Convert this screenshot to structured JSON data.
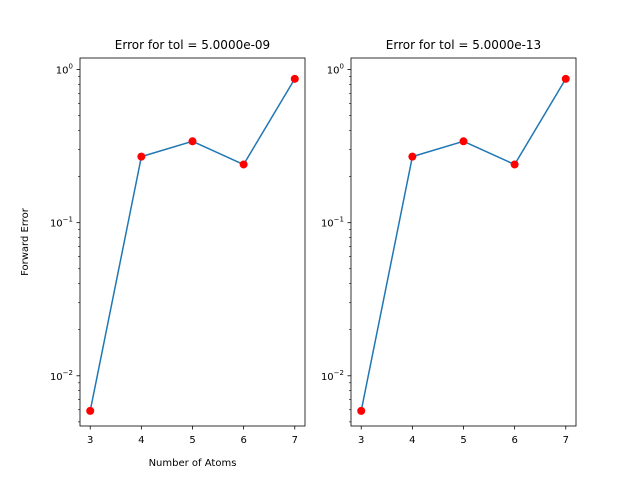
{
  "colors": {
    "line": "#1f77b4",
    "marker": "#ff0000",
    "axis": "#000000"
  },
  "chart_data": [
    {
      "type": "line",
      "title": "Error for tol = 5.0000e-09",
      "xlabel": "Number of Atoms",
      "ylabel": "Forward Error",
      "yscale": "log",
      "grid": false,
      "xlim": [
        2.8,
        7.2
      ],
      "ylim": [
        0.0047,
        1.19
      ],
      "x": [
        3,
        4,
        5,
        6,
        7
      ],
      "y": [
        0.0059,
        0.27,
        0.34,
        0.24,
        0.87
      ],
      "xticks": [
        "3",
        "4",
        "5",
        "6",
        "7"
      ],
      "yticks": [
        {
          "value": 0.01,
          "base": "10",
          "exp": "−2"
        },
        {
          "value": 0.1,
          "base": "10",
          "exp": "−1"
        },
        {
          "value": 1,
          "base": "10",
          "exp": "0"
        }
      ]
    },
    {
      "type": "line",
      "title": "Error for tol = 5.0000e-13",
      "xlabel": "",
      "ylabel": "",
      "yscale": "log",
      "grid": false,
      "xlim": [
        2.8,
        7.2
      ],
      "ylim": [
        0.0047,
        1.19
      ],
      "x": [
        3,
        4,
        5,
        6,
        7
      ],
      "y": [
        0.0059,
        0.27,
        0.34,
        0.24,
        0.87
      ],
      "xticks": [
        "3",
        "4",
        "5",
        "6",
        "7"
      ],
      "yticks": [
        {
          "value": 0.01,
          "base": "10",
          "exp": "−2"
        },
        {
          "value": 0.1,
          "base": "10",
          "exp": "−1"
        },
        {
          "value": 1,
          "base": "10",
          "exp": "0"
        }
      ]
    }
  ]
}
